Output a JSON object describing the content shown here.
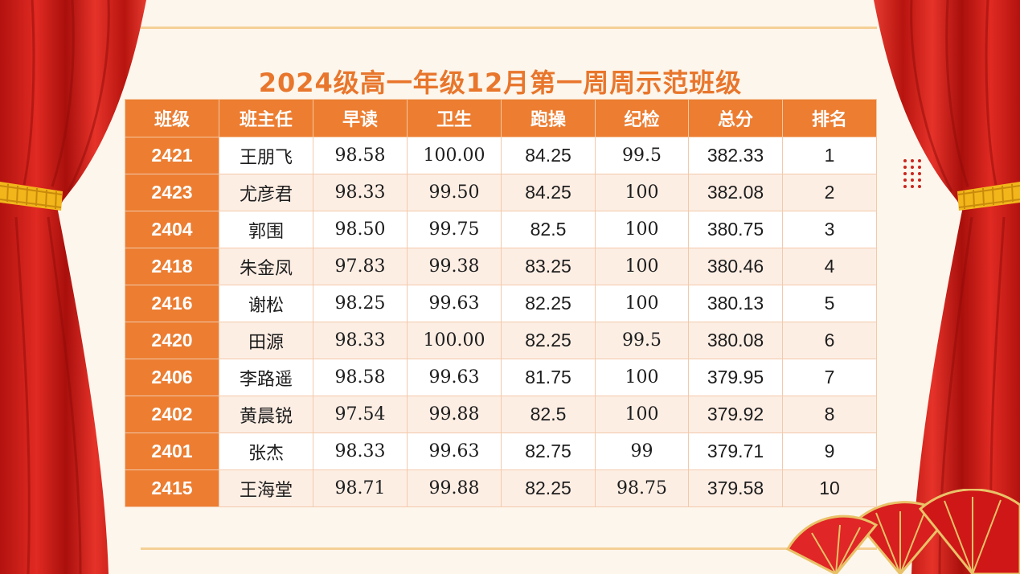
{
  "title": "2024级高一年级12月第一周周示范班级",
  "columns": [
    "班级",
    "班主任",
    "早读",
    "卫生",
    "跑操",
    "纪检",
    "总分",
    "排名"
  ],
  "rows": [
    {
      "class": "2421",
      "teacher": "王朋飞",
      "morning_reading": "98.58",
      "hygiene": "100.00",
      "running": "84.25",
      "discipline": "99.5",
      "total": "382.33",
      "rank": "1"
    },
    {
      "class": "2423",
      "teacher": "尤彦君",
      "morning_reading": "98.33",
      "hygiene": "99.50",
      "running": "84.25",
      "discipline": "100",
      "total": "382.08",
      "rank": "2"
    },
    {
      "class": "2404",
      "teacher": "郭围",
      "morning_reading": "98.50",
      "hygiene": "99.75",
      "running": "82.5",
      "discipline": "100",
      "total": "380.75",
      "rank": "3"
    },
    {
      "class": "2418",
      "teacher": "朱金凤",
      "morning_reading": "97.83",
      "hygiene": "99.38",
      "running": "83.25",
      "discipline": "100",
      "total": "380.46",
      "rank": "4"
    },
    {
      "class": "2416",
      "teacher": "谢松",
      "morning_reading": "98.25",
      "hygiene": "99.63",
      "running": "82.25",
      "discipline": "100",
      "total": "380.13",
      "rank": "5"
    },
    {
      "class": "2420",
      "teacher": "田源",
      "morning_reading": "98.33",
      "hygiene": "100.00",
      "running": "82.25",
      "discipline": "99.5",
      "total": "380.08",
      "rank": "6"
    },
    {
      "class": "2406",
      "teacher": "李路遥",
      "morning_reading": "98.58",
      "hygiene": "99.63",
      "running": "81.75",
      "discipline": "100",
      "total": "379.95",
      "rank": "7"
    },
    {
      "class": "2402",
      "teacher": "黄晨锐",
      "morning_reading": "97.54",
      "hygiene": "99.88",
      "running": "82.5",
      "discipline": "100",
      "total": "379.92",
      "rank": "8"
    },
    {
      "class": "2401",
      "teacher": "张杰",
      "morning_reading": "98.33",
      "hygiene": "99.63",
      "running": "82.75",
      "discipline": "99",
      "total": "379.71",
      "rank": "9"
    },
    {
      "class": "2415",
      "teacher": "王海堂",
      "morning_reading": "98.71",
      "hygiene": "99.88",
      "running": "82.25",
      "discipline": "98.75",
      "total": "379.58",
      "rank": "10"
    }
  ],
  "colors": {
    "accent": "#ec7d31",
    "title": "#e8762c",
    "curtain": "#d7191c",
    "stripe": "#fdeee4",
    "background": "#fdf6ec",
    "gold": "#f2b61b"
  },
  "decor": {
    "curtains": "red-stage-curtain",
    "fans": "red-folding-fan",
    "dots": "red-dot-grid"
  }
}
